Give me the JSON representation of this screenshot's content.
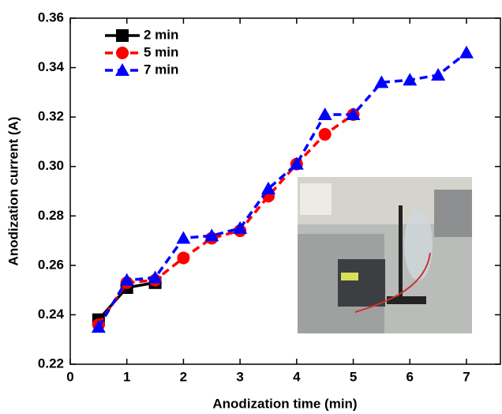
{
  "chart_data": {
    "type": "line",
    "xlabel": "Anodization time (min)",
    "ylabel": "Anodization current (A)",
    "xlim": [
      0,
      7.6
    ],
    "xticks": [
      0,
      1,
      2,
      3,
      4,
      5,
      6,
      7
    ],
    "ylim": [
      0.22,
      0.36
    ],
    "yticks": [
      0.22,
      0.24,
      0.26,
      0.28,
      {
        "value": 0.3,
        "label": "0.30"
      },
      0.32,
      0.34,
      0.36
    ],
    "legend": "upper left",
    "series": [
      {
        "name": "2 min",
        "color": "#000000",
        "marker": "square",
        "x": [
          0.5,
          1,
          1.5
        ],
        "values": [
          0.238,
          0.251,
          0.253
        ]
      },
      {
        "name": "5 min",
        "color": "#ff0000",
        "marker": "circle",
        "x": [
          0.5,
          1,
          1.5,
          2,
          2.5,
          3,
          3.5,
          4,
          4.5,
          5
        ],
        "values": [
          0.236,
          0.253,
          0.254,
          0.263,
          0.271,
          0.274,
          0.288,
          0.301,
          0.313,
          0.321
        ]
      },
      {
        "name": "7 min",
        "color": "#0000ff",
        "marker": "triangle",
        "x": [
          0.5,
          1,
          1.5,
          2,
          2.5,
          3,
          3.5,
          4,
          4.5,
          5,
          5.5,
          6,
          6.5,
          7
        ],
        "values": [
          0.235,
          0.254,
          0.255,
          0.271,
          0.272,
          0.275,
          0.291,
          0.301,
          0.321,
          0.321,
          0.334,
          0.335,
          0.337,
          0.346
        ]
      }
    ]
  }
}
